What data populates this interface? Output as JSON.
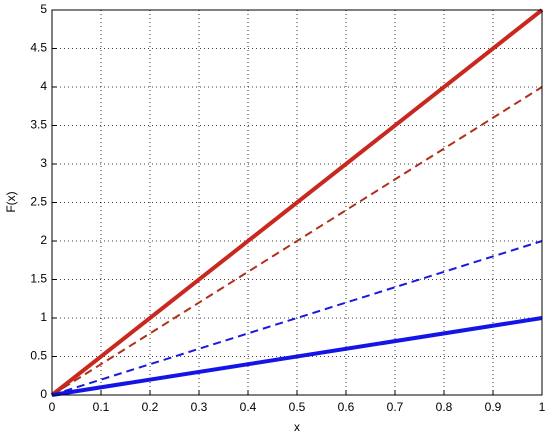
{
  "chart_data": {
    "type": "line",
    "xlabel": "x",
    "ylabel": "F(x)",
    "x": [
      0,
      1
    ],
    "series": [
      {
        "color": "#c8281e",
        "style": "solid",
        "width": 4,
        "values": [
          0,
          5
        ]
      },
      {
        "color": "#b0301c",
        "style": "dashed",
        "width": 2,
        "values": [
          0,
          4
        ]
      },
      {
        "color": "#1a1ae0",
        "style": "dashed",
        "width": 2,
        "values": [
          0,
          2
        ]
      },
      {
        "color": "#1414e6",
        "style": "solid",
        "width": 4,
        "values": [
          0,
          1
        ]
      }
    ],
    "xlim": [
      0,
      1
    ],
    "xticks": [
      0,
      0.1,
      0.2,
      0.3,
      0.4,
      0.5,
      0.6,
      0.7,
      0.8,
      0.9,
      1
    ],
    "ylim": [
      0,
      5
    ],
    "yticks": [
      0,
      0.5,
      1,
      1.5,
      2,
      2.5,
      3,
      3.5,
      4,
      4.5,
      5
    ],
    "grid": true
  }
}
